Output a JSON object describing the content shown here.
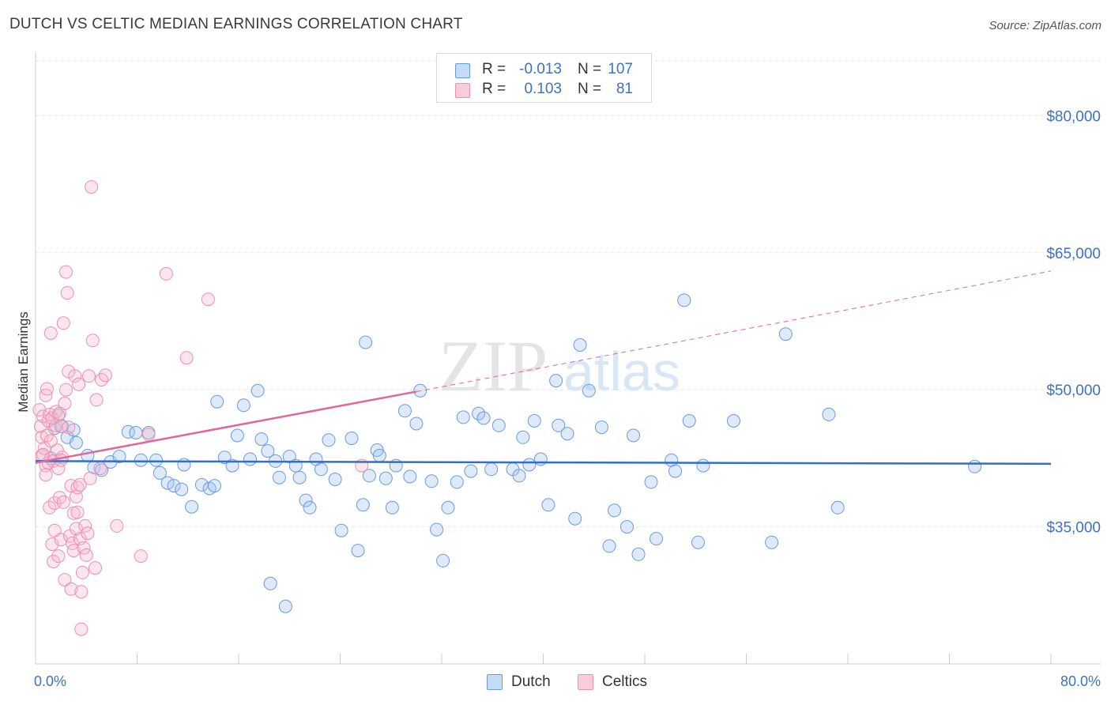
{
  "header": {
    "title": "DUTCH VS CELTIC MEDIAN EARNINGS CORRELATION CHART",
    "source": "Source: ZipAtlas.com"
  },
  "watermark": {
    "zip": "ZIP",
    "atlas": "atlas"
  },
  "legend": {
    "rows": [
      {
        "r_label": "R =",
        "r_value": "-0.013",
        "n_label": "N =",
        "n_value": "107"
      },
      {
        "r_label": "R =",
        "r_value": "0.103",
        "n_label": "N =",
        "n_value": "81"
      }
    ]
  },
  "chart_data": {
    "type": "scatter",
    "title": "DUTCH VS CELTIC MEDIAN EARNINGS CORRELATION CHART",
    "xlabel": "",
    "ylabel": "Median Earnings",
    "xlim": [
      0,
      80
    ],
    "ylim": [
      20000,
      86000
    ],
    "x_tick_labels": [
      "0.0%",
      "80.0%"
    ],
    "y_ticks": [
      35000,
      50000,
      65000,
      80000
    ],
    "y_tick_labels": [
      "$35,000",
      "$50,000",
      "$65,000",
      "$80,000"
    ],
    "grid": true,
    "legend_position": "top-center and bottom",
    "colors": {
      "Dutch": "#6a9be0",
      "Celtics": "#ee8fb0",
      "dutch_line": "#2f6fcf",
      "celtic_line": "#e0679a"
    },
    "series": [
      {
        "name": "Dutch",
        "r": -0.013,
        "n": 107,
        "trend": {
          "x": [
            0,
            80
          ],
          "y": [
            42200,
            41900
          ]
        },
        "points": [
          [
            1.2,
            42500
          ],
          [
            1.5,
            45800
          ],
          [
            1.8,
            47200
          ],
          [
            2.1,
            46000
          ],
          [
            2.5,
            44800
          ],
          [
            3.0,
            45600
          ],
          [
            3.2,
            44200
          ],
          [
            4.1,
            42800
          ],
          [
            4.6,
            41500
          ],
          [
            5.2,
            41200
          ],
          [
            5.9,
            42100
          ],
          [
            6.6,
            42700
          ],
          [
            7.3,
            45400
          ],
          [
            7.9,
            45300
          ],
          [
            8.3,
            42300
          ],
          [
            8.9,
            45300
          ],
          [
            9.5,
            42300
          ],
          [
            9.8,
            40900
          ],
          [
            10.4,
            39800
          ],
          [
            10.9,
            39500
          ],
          [
            11.5,
            39100
          ],
          [
            11.7,
            41800
          ],
          [
            12.3,
            37200
          ],
          [
            13.1,
            39600
          ],
          [
            13.7,
            39200
          ],
          [
            14.1,
            39500
          ],
          [
            14.3,
            48700
          ],
          [
            14.9,
            42600
          ],
          [
            15.5,
            41700
          ],
          [
            15.9,
            45000
          ],
          [
            16.4,
            48300
          ],
          [
            16.9,
            42400
          ],
          [
            17.5,
            49900
          ],
          [
            17.8,
            44600
          ],
          [
            18.3,
            43300
          ],
          [
            18.5,
            28800
          ],
          [
            18.9,
            42200
          ],
          [
            19.2,
            40400
          ],
          [
            19.7,
            26300
          ],
          [
            20.0,
            42700
          ],
          [
            20.5,
            41700
          ],
          [
            20.8,
            40400
          ],
          [
            21.3,
            37900
          ],
          [
            21.6,
            37100
          ],
          [
            22.1,
            42400
          ],
          [
            22.5,
            41300
          ],
          [
            23.1,
            44500
          ],
          [
            23.6,
            40200
          ],
          [
            24.1,
            34600
          ],
          [
            24.9,
            44700
          ],
          [
            25.4,
            32400
          ],
          [
            25.8,
            37400
          ],
          [
            26.3,
            40600
          ],
          [
            26.9,
            43400
          ],
          [
            27.1,
            42800
          ],
          [
            27.6,
            40300
          ],
          [
            28.1,
            37100
          ],
          [
            28.4,
            41700
          ],
          [
            29.1,
            47700
          ],
          [
            29.5,
            40500
          ],
          [
            30.0,
            46300
          ],
          [
            30.3,
            49900
          ],
          [
            31.2,
            40000
          ],
          [
            31.6,
            34700
          ],
          [
            32.1,
            31300
          ],
          [
            32.5,
            37100
          ],
          [
            33.2,
            39900
          ],
          [
            33.7,
            47000
          ],
          [
            34.3,
            41100
          ],
          [
            34.9,
            47400
          ],
          [
            35.3,
            46900
          ],
          [
            35.9,
            41300
          ],
          [
            36.5,
            46100
          ],
          [
            37.6,
            41300
          ],
          [
            38.1,
            40600
          ],
          [
            38.4,
            44800
          ],
          [
            38.9,
            41800
          ],
          [
            39.3,
            46600
          ],
          [
            39.8,
            42400
          ],
          [
            40.4,
            37400
          ],
          [
            41.2,
            46100
          ],
          [
            41.9,
            45200
          ],
          [
            42.5,
            35900
          ],
          [
            42.9,
            54900
          ],
          [
            43.6,
            49900
          ],
          [
            44.6,
            45900
          ],
          [
            45.2,
            32900
          ],
          [
            45.6,
            36800
          ],
          [
            46.6,
            35000
          ],
          [
            47.1,
            45000
          ],
          [
            47.5,
            32000
          ],
          [
            48.5,
            39900
          ],
          [
            48.9,
            33700
          ],
          [
            50.1,
            42300
          ],
          [
            50.4,
            41100
          ],
          [
            51.1,
            59800
          ],
          [
            51.5,
            46600
          ],
          [
            52.2,
            33300
          ],
          [
            52.6,
            41700
          ],
          [
            55.0,
            46600
          ],
          [
            58.0,
            33300
          ],
          [
            59.1,
            56100
          ],
          [
            62.5,
            47300
          ],
          [
            63.2,
            37100
          ],
          [
            74.0,
            41600
          ],
          [
            26.0,
            55200
          ],
          [
            41.0,
            51000
          ]
        ]
      },
      {
        "name": "Celtics",
        "r": 0.103,
        "n": 81,
        "trend": {
          "x": [
            0,
            30
          ],
          "y": [
            42000,
            49800
          ]
        },
        "trend_extension": {
          "x": [
            30,
            80
          ],
          "y": [
            49800,
            63000
          ]
        },
        "points": [
          [
            0.3,
            47800
          ],
          [
            0.4,
            46000
          ],
          [
            0.5,
            42800
          ],
          [
            0.5,
            44800
          ],
          [
            0.6,
            47100
          ],
          [
            0.7,
            43600
          ],
          [
            0.8,
            49400
          ],
          [
            0.8,
            41700
          ],
          [
            0.9,
            50100
          ],
          [
            1.0,
            46600
          ],
          [
            1.0,
            42000
          ],
          [
            1.1,
            47300
          ],
          [
            1.1,
            37100
          ],
          [
            1.2,
            56200
          ],
          [
            1.3,
            33100
          ],
          [
            1.4,
            31200
          ],
          [
            1.4,
            42200
          ],
          [
            1.5,
            37600
          ],
          [
            1.5,
            34600
          ],
          [
            1.6,
            46100
          ],
          [
            1.7,
            43400
          ],
          [
            1.8,
            41400
          ],
          [
            1.8,
            31800
          ],
          [
            1.9,
            38200
          ],
          [
            2.0,
            46000
          ],
          [
            2.0,
            33600
          ],
          [
            2.1,
            42600
          ],
          [
            2.2,
            57300
          ],
          [
            2.2,
            37700
          ],
          [
            2.3,
            48500
          ],
          [
            2.3,
            29200
          ],
          [
            2.4,
            62900
          ],
          [
            2.4,
            50000
          ],
          [
            2.5,
            60600
          ],
          [
            2.6,
            52000
          ],
          [
            2.7,
            34000
          ],
          [
            2.8,
            39500
          ],
          [
            2.8,
            28200
          ],
          [
            2.9,
            33200
          ],
          [
            3.0,
            36500
          ],
          [
            3.0,
            32400
          ],
          [
            3.1,
            51500
          ],
          [
            3.2,
            38300
          ],
          [
            3.2,
            34800
          ],
          [
            3.3,
            36600
          ],
          [
            3.3,
            39300
          ],
          [
            3.4,
            50600
          ],
          [
            3.5,
            33700
          ],
          [
            3.5,
            39600
          ],
          [
            3.6,
            27900
          ],
          [
            3.6,
            23800
          ],
          [
            3.8,
            32700
          ],
          [
            3.9,
            35100
          ],
          [
            4.0,
            31900
          ],
          [
            4.1,
            34300
          ],
          [
            4.2,
            51500
          ],
          [
            4.3,
            40300
          ],
          [
            4.4,
            72200
          ],
          [
            4.5,
            55400
          ],
          [
            4.7,
            30500
          ],
          [
            4.8,
            48900
          ],
          [
            5.1,
            41400
          ],
          [
            5.2,
            51100
          ],
          [
            5.5,
            51600
          ],
          [
            6.4,
            35100
          ],
          [
            8.3,
            31800
          ],
          [
            8.9,
            45100
          ],
          [
            10.3,
            62700
          ],
          [
            11.9,
            53500
          ],
          [
            13.6,
            59900
          ],
          [
            25.7,
            41700
          ],
          [
            0.9,
            45000
          ],
          [
            1.3,
            46900
          ],
          [
            1.6,
            47600
          ],
          [
            2.0,
            42300
          ],
          [
            0.6,
            42900
          ],
          [
            1.2,
            44400
          ],
          [
            0.8,
            40700
          ],
          [
            3.7,
            30000
          ],
          [
            2.6,
            45900
          ],
          [
            1.9,
            47400
          ]
        ]
      }
    ]
  },
  "bottom_legend": {
    "items": [
      "Dutch",
      "Celtics"
    ]
  }
}
